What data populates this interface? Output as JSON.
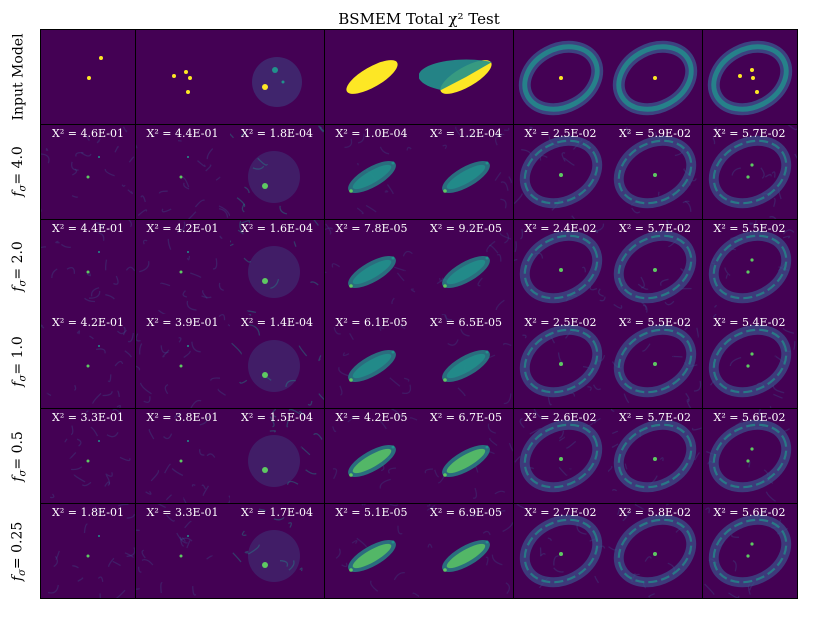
{
  "title": "BSMEM Total χ² Test",
  "input_label": "Input Model",
  "row_labels": [
    {
      "symbol": "f",
      "sub": "σ",
      "value": "= 4.0"
    },
    {
      "symbol": "f",
      "sub": "σ",
      "value": "= 2.0"
    },
    {
      "symbol": "f",
      "sub": "σ",
      "value": "= 1.0"
    },
    {
      "symbol": "f",
      "sub": "σ",
      "value": "= 0.5"
    },
    {
      "symbol": "f",
      "sub": "σ",
      "value": "= 0.25"
    }
  ],
  "chi_prefix": "X² = ",
  "chi_values": [
    [
      "4.6E-01",
      "4.4E-01",
      "1.8E-04",
      "1.0E-04",
      "1.2E-04",
      "2.5E-02",
      "5.9E-02",
      "5.7E-02"
    ],
    [
      "4.4E-01",
      "4.2E-01",
      "1.6E-04",
      "7.8E-05",
      "9.2E-05",
      "2.4E-02",
      "5.7E-02",
      "5.5E-02"
    ],
    [
      "4.2E-01",
      "3.9E-01",
      "1.4E-04",
      "6.1E-05",
      "6.5E-05",
      "2.5E-02",
      "5.5E-02",
      "5.4E-02"
    ],
    [
      "3.3E-01",
      "3.8E-01",
      "1.5E-04",
      "4.2E-05",
      "6.7E-05",
      "2.6E-02",
      "5.7E-02",
      "5.6E-02"
    ],
    [
      "1.8E-01",
      "3.3E-01",
      "1.7E-04",
      "5.1E-05",
      "6.9E-05",
      "2.7E-02",
      "5.8E-02",
      "5.6E-02"
    ]
  ],
  "colors": {
    "background": "#440154",
    "bright": "#fde725",
    "teal": "#21918c",
    "blue": "#3b528b",
    "green": "#5ec962"
  }
}
